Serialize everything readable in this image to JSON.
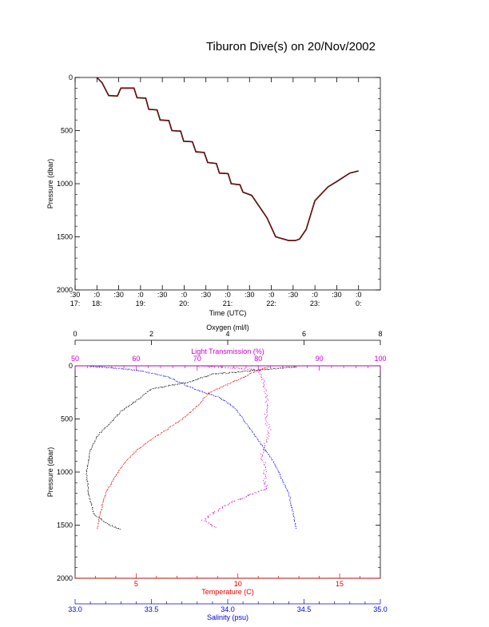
{
  "title": "Tiburon Dive(s) on 20/Nov/2002",
  "colors": {
    "axis": "#000000",
    "pressure_trace": "#000000",
    "pressure_overlay": "#e00000",
    "oxygen": "#000000",
    "light": "#cc00cc",
    "temperature": "#e00000",
    "salinity": "#0000dd"
  },
  "chart_data": [
    {
      "type": "line",
      "title": "Tiburon Dive(s) on 20/Nov/2002",
      "xlabel": "Time (UTC)",
      "ylabel": "Pressure (dbar)",
      "xlim": [
        17.5,
        24.5
      ],
      "ylim": [
        2000,
        0
      ],
      "y_ticks": [
        "0",
        "500",
        "1000",
        "1500",
        "2000"
      ],
      "x_ticks": [
        {
          "v": 17.5,
          "top": ":30",
          "bottom": "17:"
        },
        {
          "v": 18.0,
          "top": ":0",
          "bottom": "18:"
        },
        {
          "v": 18.5,
          "top": ":30",
          "bottom": ""
        },
        {
          "v": 19.0,
          "top": ":0",
          "bottom": "19:"
        },
        {
          "v": 19.5,
          "top": ":30",
          "bottom": ""
        },
        {
          "v": 20.0,
          "top": ":0",
          "bottom": "20:"
        },
        {
          "v": 20.5,
          "top": ":30",
          "bottom": ""
        },
        {
          "v": 21.0,
          "top": ":0",
          "bottom": "21:"
        },
        {
          "v": 21.5,
          "top": ":30",
          "bottom": ""
        },
        {
          "v": 22.0,
          "top": ":0",
          "bottom": "22:"
        },
        {
          "v": 22.5,
          "top": ":30",
          "bottom": ""
        },
        {
          "v": 23.0,
          "top": ":0",
          "bottom": "23:"
        },
        {
          "v": 23.5,
          "top": ":30",
          "bottom": ""
        },
        {
          "v": 24.0,
          "top": ":0",
          "bottom": "0:"
        }
      ],
      "series": [
        {
          "x": [
            18.0,
            18.12,
            18.27,
            18.47,
            18.55,
            18.85,
            18.92,
            19.12,
            19.19,
            19.38,
            19.45,
            19.65,
            19.72,
            19.92,
            19.99,
            20.19,
            20.27,
            20.46,
            20.54,
            20.74,
            20.81,
            21.01,
            21.08,
            21.28,
            21.35,
            21.55,
            21.9,
            22.1,
            22.4,
            22.55,
            22.65,
            22.8,
            23.0,
            23.3,
            23.5,
            23.8,
            24.0
          ],
          "y": [
            0,
            50,
            170,
            175,
            100,
            100,
            190,
            195,
            300,
            305,
            400,
            405,
            500,
            505,
            600,
            605,
            700,
            705,
            800,
            810,
            900,
            905,
            1000,
            1010,
            1080,
            1110,
            1320,
            1500,
            1535,
            1535,
            1520,
            1430,
            1160,
            1030,
            980,
            900,
            880
          ]
        }
      ]
    },
    {
      "type": "scatter",
      "ylabel": "Pressure (dbar)",
      "ylim": [
        2000,
        0
      ],
      "y_ticks": [
        "0",
        "500",
        "1000",
        "1500",
        "2000"
      ],
      "axes": {
        "oxygen": {
          "label": "Oxygen (ml/l)",
          "range": [
            0,
            8
          ],
          "ticks": [
            "0",
            "2",
            "4",
            "6",
            "8"
          ]
        },
        "light": {
          "label": "Light Transmission (%)",
          "range": [
            50,
            100
          ],
          "ticks": [
            "50",
            "60",
            "70",
            "80",
            "90",
            "100"
          ]
        },
        "temperature": {
          "label": "Temperature (C)",
          "range": [
            2,
            17
          ],
          "ticks": [
            "5",
            "10",
            "15"
          ]
        },
        "salinity": {
          "label": "Salinity (psu)",
          "range": [
            33.0,
            35.0
          ],
          "ticks": [
            "33.0",
            "33.5",
            "34.0",
            "34.5",
            "35.0"
          ]
        }
      },
      "series": [
        {
          "name": "Oxygen (ml/l)",
          "axis": "oxygen",
          "x": [
            5.8,
            4.8,
            3.6,
            3.0,
            2.0,
            1.6,
            1.2,
            0.9,
            0.6,
            0.4,
            0.3,
            0.35,
            0.5,
            0.9,
            1.2
          ],
          "y": [
            10,
            40,
            80,
            150,
            220,
            330,
            430,
            550,
            650,
            800,
            1000,
            1200,
            1400,
            1500,
            1540
          ]
        },
        {
          "name": "Light Transmission (%)",
          "axis": "light",
          "x": [
            70,
            76,
            80,
            80.6,
            81,
            81.5,
            81.2,
            81.8,
            81.5,
            80.5,
            81.2,
            81,
            81.5,
            75,
            71,
            73
          ],
          "y": [
            0,
            20,
            40,
            100,
            200,
            300,
            500,
            600,
            700,
            850,
            950,
            1100,
            1150,
            1300,
            1450,
            1530
          ]
        },
        {
          "name": "Temperature (C)",
          "axis": "temperature",
          "x": [
            11.5,
            10.8,
            9.8,
            8.6,
            8.0,
            7.3,
            6.5,
            5.7,
            5.0,
            4.5,
            4.1,
            3.8,
            3.5,
            3.35,
            3.2,
            3.1
          ],
          "y": [
            10,
            60,
            150,
            250,
            380,
            500,
            600,
            700,
            800,
            900,
            1000,
            1100,
            1200,
            1300,
            1420,
            1540
          ]
        },
        {
          "name": "Salinity (psu)",
          "axis": "salinity",
          "x": [
            33.1,
            33.4,
            33.6,
            33.75,
            33.95,
            34.05,
            34.1,
            34.15,
            34.2,
            34.25,
            34.3,
            34.35,
            34.4,
            34.43,
            34.45
          ],
          "y": [
            5,
            40,
            100,
            200,
            300,
            400,
            500,
            600,
            700,
            800,
            900,
            1050,
            1200,
            1400,
            1540
          ]
        }
      ]
    }
  ]
}
